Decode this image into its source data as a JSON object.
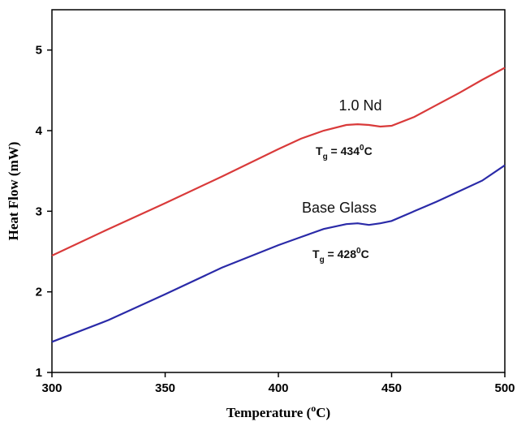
{
  "chart_data": {
    "type": "line",
    "x_label": {
      "text": "Temperature (",
      "sup": "o",
      "rest": "C)"
    },
    "y_label": "Heat Flow (mW)",
    "x": [
      300,
      325,
      350,
      375,
      400,
      410,
      420,
      430,
      435,
      440,
      445,
      450,
      460,
      470,
      480,
      490,
      500
    ],
    "series": [
      {
        "name": "1.0 Nd",
        "color": "#d93a3a",
        "values": [
          2.45,
          2.78,
          3.1,
          3.43,
          3.77,
          3.9,
          4.0,
          4.07,
          4.08,
          4.07,
          4.05,
          4.06,
          4.17,
          4.32,
          4.47,
          4.63,
          4.78
        ]
      },
      {
        "name": "Base Glass",
        "color": "#2a2aa8",
        "values": [
          1.38,
          1.65,
          1.97,
          2.3,
          2.58,
          2.68,
          2.78,
          2.84,
          2.85,
          2.83,
          2.85,
          2.88,
          3.0,
          3.12,
          3.25,
          3.38,
          3.57
        ]
      }
    ],
    "annotations": [
      {
        "text": "T",
        "sub": "g",
        "rest": " = 434",
        "sup": "0",
        "unit": "C"
      },
      {
        "text": "T",
        "sub": "g",
        "rest": " = 428",
        "sup": "0",
        "unit": "C"
      }
    ],
    "xlim": [
      300,
      500
    ],
    "xticks": [
      300,
      350,
      400,
      450,
      500
    ],
    "ylim": [
      1,
      5.5
    ],
    "yticks": [
      1,
      2,
      3,
      4,
      5
    ]
  }
}
